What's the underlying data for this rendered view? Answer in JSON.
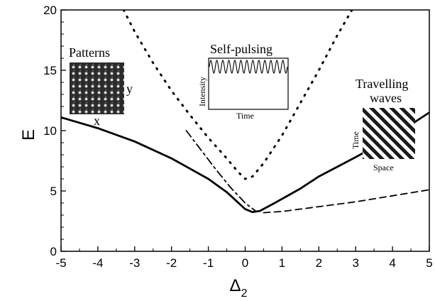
{
  "chart_data": {
    "type": "line",
    "xlabel": "Δ",
    "xlabel_sub": "2",
    "ylabel": "E",
    "xlim": [
      -5,
      5
    ],
    "ylim": [
      0,
      20
    ],
    "xticks": [
      -5,
      -4,
      -3,
      -2,
      -1,
      0,
      1,
      2,
      3,
      4,
      5
    ],
    "yticks": [
      0,
      5,
      10,
      15,
      20
    ],
    "grid": false,
    "series": [
      {
        "style": "solid",
        "x": [
          -5,
          -4,
          -3,
          -2,
          -1,
          -0.5,
          0,
          0.2,
          0.4,
          0.8,
          1.5,
          2,
          3,
          4,
          5
        ],
        "y": [
          11.1,
          10.2,
          9.1,
          7.7,
          6.0,
          4.9,
          3.5,
          3.25,
          3.35,
          4.0,
          5.2,
          6.2,
          7.8,
          9.5,
          11.5
        ]
      },
      {
        "style": "dashdot",
        "x": [
          -1.6,
          -1.2,
          -0.8,
          -0.4,
          0,
          0.3
        ],
        "y": [
          10.0,
          8.4,
          6.8,
          5.3,
          4.0,
          3.3
        ]
      },
      {
        "style": "dashed",
        "x": [
          0.5,
          1,
          2,
          3,
          4,
          5
        ],
        "y": [
          3.2,
          3.3,
          3.7,
          4.1,
          4.6,
          5.1
        ]
      },
      {
        "style": "dotted",
        "x": [
          -3.3,
          -3,
          -2.5,
          -2,
          -1.5,
          -1,
          -0.5,
          -0.2,
          0,
          0.2,
          0.5,
          1,
          1.5,
          2,
          2.5,
          2.9
        ],
        "y": [
          20,
          18.2,
          15.6,
          13.3,
          11.3,
          9.4,
          7.7,
          6.6,
          6.0,
          6.2,
          7.3,
          9.6,
          12.3,
          15.0,
          17.9,
          20
        ]
      }
    ],
    "annotations": {
      "patterns": {
        "title": "Patterns",
        "x_label": "x",
        "y_label": "y"
      },
      "self_pulsing": {
        "title": "Self-pulsing",
        "x_label": "Time",
        "y_label": "Intensity"
      },
      "travelling": {
        "title_line1": "Travelling",
        "title_line2": "waves",
        "x_label": "Space",
        "y_label": "Time"
      }
    }
  }
}
